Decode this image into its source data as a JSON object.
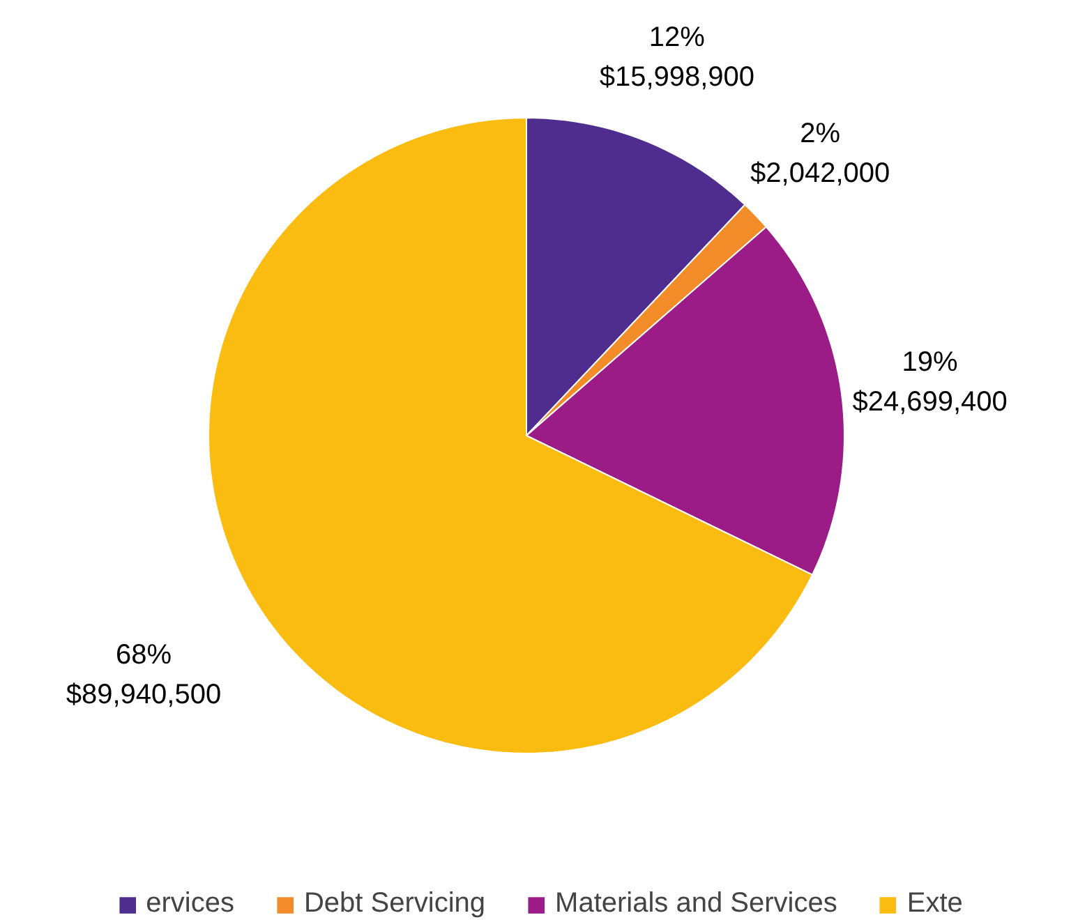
{
  "chart_data": {
    "type": "pie",
    "categories": [
      "ervices",
      "Debt Servicing",
      "Materials and Services",
      "Exte"
    ],
    "values": [
      15998900,
      2042000,
      24699400,
      89940500
    ],
    "colors": [
      "#4f2d8f",
      "#f28c28",
      "#9b1b87",
      "#fbbc12"
    ],
    "value_labels": [
      "12%\n$15,998,900",
      "2%\n$2,042,000",
      "19%\n$24,699,400",
      "68%\n$89,940,500"
    ],
    "legend": "bottom"
  }
}
